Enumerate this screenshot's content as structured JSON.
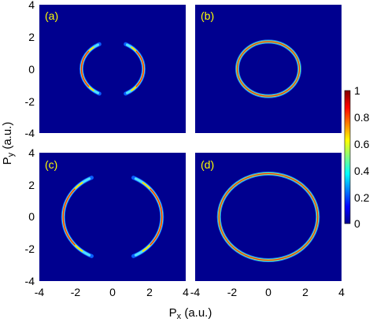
{
  "chart_data": {
    "type": "heatmap",
    "panels": [
      {
        "label": "(a)",
        "radius": 1.7,
        "shape": "two-arcs",
        "arc_half_angle_deg": 62
      },
      {
        "label": "(b)",
        "radius": 1.7,
        "shape": "full-ring"
      },
      {
        "label": "(c)",
        "radius": 2.7,
        "shape": "two-arcs",
        "arc_half_angle_deg": 62
      },
      {
        "label": "(d)",
        "radius": 2.7,
        "shape": "full-ring"
      }
    ],
    "xlim": [
      -4,
      4
    ],
    "ylim": [
      -4,
      4
    ],
    "x_ticks": [
      "-4",
      "-2",
      "0",
      "2",
      "4"
    ],
    "y_ticks": [
      "4",
      "2",
      "0",
      "-2",
      "-4"
    ],
    "xlabel_main": "P",
    "xlabel_sub": "x",
    "xlabel_unit": " (a.u.)",
    "ylabel_main": "P",
    "ylabel_sub": "y",
    "ylabel_unit": " (a.u.)",
    "colorbar": {
      "range": [
        0,
        1
      ],
      "tick_labels": [
        "1",
        "0.8",
        "0.6",
        "0.4",
        "0.2",
        "0"
      ],
      "tick_values": [
        1,
        0.8,
        0.6,
        0.4,
        0.2,
        0
      ],
      "colormap": "jet"
    },
    "background_color": "#00008f"
  }
}
